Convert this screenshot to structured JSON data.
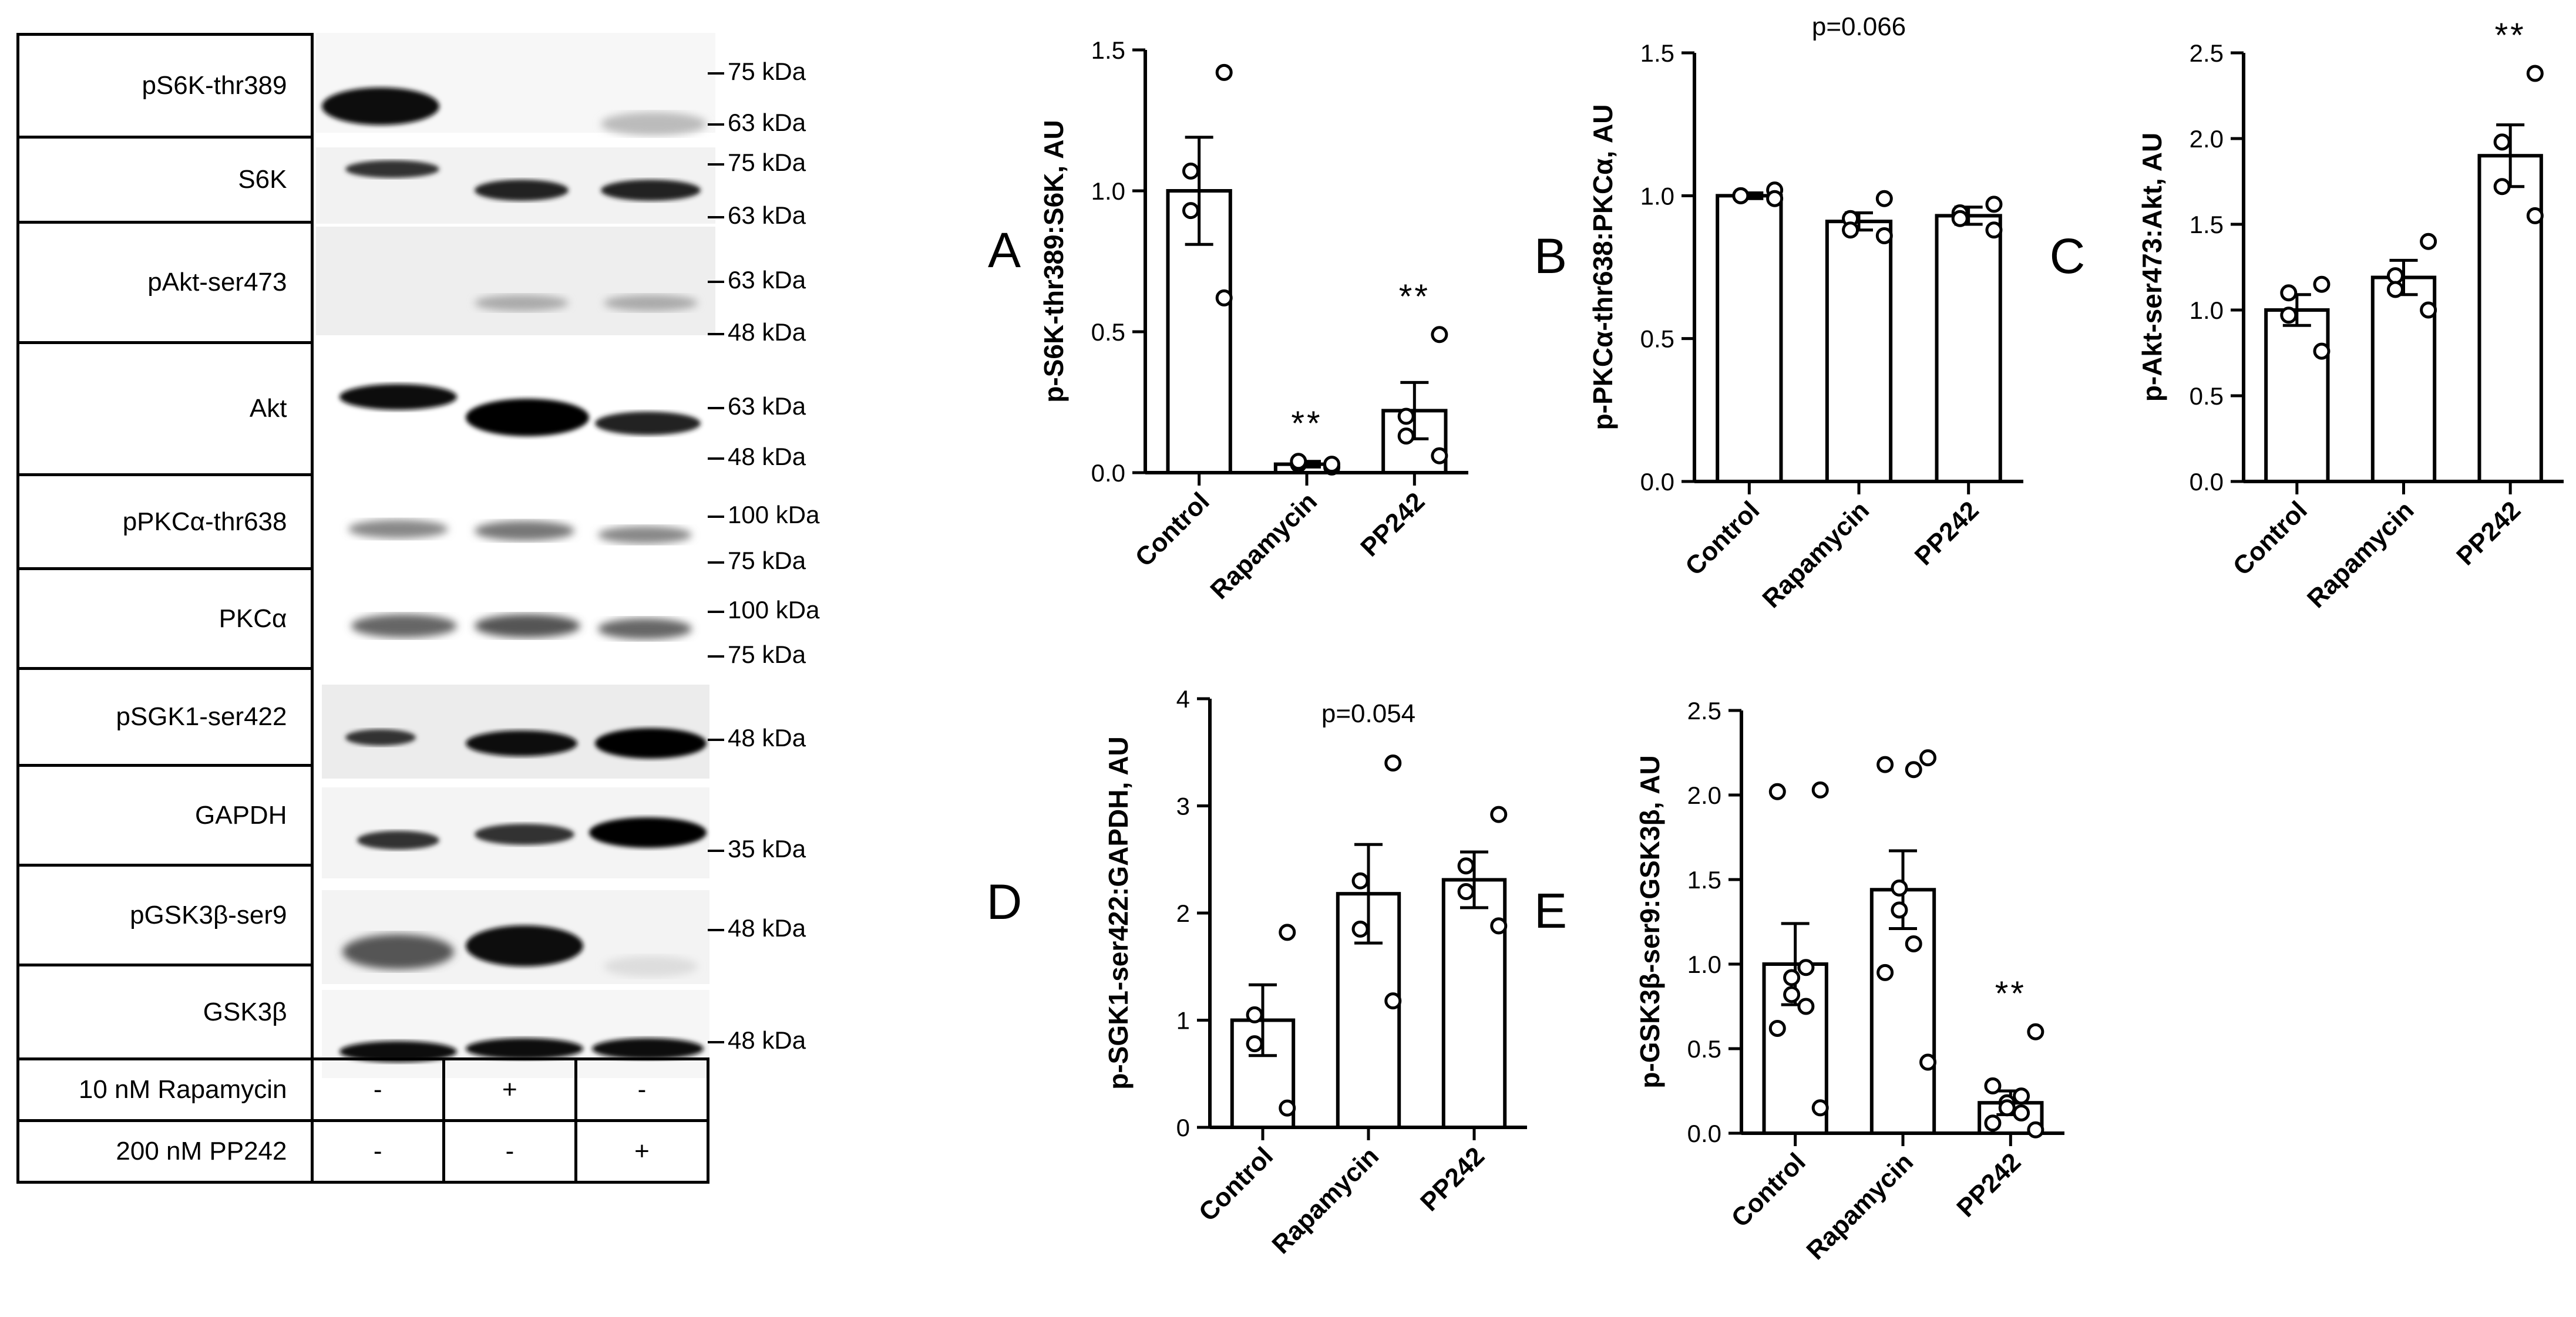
{
  "blot": {
    "rows": [
      {
        "label": "pS6K-thr389",
        "markers": [
          "75 kDa",
          "63 kDa"
        ]
      },
      {
        "label": "S6K",
        "markers": [
          "75 kDa",
          "63 kDa"
        ]
      },
      {
        "label": "pAkt-ser473",
        "markers": [
          "63 kDa",
          "48 kDa"
        ]
      },
      {
        "label": "Akt",
        "markers": [
          "63 kDa",
          "48 kDa"
        ]
      },
      {
        "label": "pPKCα-thr638",
        "markers": [
          "100 kDa",
          "75 kDa"
        ]
      },
      {
        "label": "PKCα",
        "markers": [
          "100 kDa",
          "75 kDa"
        ]
      },
      {
        "label": "pSGK1-ser422",
        "markers": [
          "48 kDa"
        ]
      },
      {
        "label": "GAPDH",
        "markers": [
          "35 kDa"
        ]
      },
      {
        "label": "pGSK3β-ser9",
        "markers": [
          "48 kDa"
        ]
      },
      {
        "label": "GSK3β",
        "markers": [
          "48 kDa"
        ]
      }
    ],
    "treatments": [
      {
        "label": "10 nM Rapamycin",
        "lanes": [
          "-",
          "+",
          "-"
        ]
      },
      {
        "label": "200 nM PP242",
        "lanes": [
          "-",
          "-",
          "+"
        ]
      }
    ]
  },
  "chart_data": [
    {
      "panel": "A",
      "type": "bar",
      "ylabel": "p-S6K-thr389:S6K, AU",
      "categories": [
        "Control",
        "Rapamycin",
        "PP242"
      ],
      "values": [
        1.0,
        0.03,
        0.22
      ],
      "sem": [
        0.19,
        0.01,
        0.1
      ],
      "points": [
        [
          1.42,
          1.07,
          0.93,
          0.62
        ],
        [
          0.02,
          0.03,
          0.04,
          0.03
        ],
        [
          0.49,
          0.2,
          0.13,
          0.06
        ]
      ],
      "ylim": [
        0,
        1.5
      ],
      "yticks": [
        "0.0",
        "0.5",
        "1.0",
        "1.5"
      ],
      "significance": [
        "",
        "**",
        "**"
      ],
      "pvalue": ""
    },
    {
      "panel": "B",
      "type": "bar",
      "ylabel": "p-PKCα-thr638:PKCα, AU",
      "categories": [
        "Control",
        "Rapamycin",
        "PP242"
      ],
      "values": [
        1.0,
        0.91,
        0.93
      ],
      "sem": [
        0.01,
        0.03,
        0.03
      ],
      "points": [
        [
          1.02,
          1.0,
          1.0,
          0.99
        ],
        [
          0.99,
          0.92,
          0.88,
          0.86
        ],
        [
          0.97,
          0.94,
          0.92,
          0.88
        ]
      ],
      "ylim": [
        0,
        1.5
      ],
      "yticks": [
        "0.0",
        "0.5",
        "1.0",
        "1.5"
      ],
      "significance": [
        "",
        "",
        ""
      ],
      "pvalue": "p=0.066"
    },
    {
      "panel": "C",
      "type": "bar",
      "ylabel": "p-Akt-ser473:Akt, AU",
      "categories": [
        "Control",
        "Rapamycin",
        "PP242"
      ],
      "values": [
        1.0,
        1.19,
        1.9
      ],
      "sem": [
        0.09,
        0.1,
        0.18
      ],
      "points": [
        [
          1.15,
          1.1,
          0.97,
          0.76
        ],
        [
          1.4,
          1.2,
          1.12,
          1.0
        ],
        [
          2.38,
          1.98,
          1.72,
          1.55
        ]
      ],
      "ylim": [
        0,
        2.5
      ],
      "yticks": [
        "0.0",
        "0.5",
        "1.0",
        "1.5",
        "2.0",
        "2.5"
      ],
      "significance": [
        "",
        "",
        "**"
      ],
      "pvalue": ""
    },
    {
      "panel": "D",
      "type": "bar",
      "ylabel": "p-SGK1-ser422:GAPDH, AU",
      "categories": [
        "Control",
        "Rapamycin",
        "PP242"
      ],
      "values": [
        1.0,
        2.18,
        2.31
      ],
      "sem": [
        0.33,
        0.46,
        0.26
      ],
      "points": [
        [
          1.82,
          1.05,
          0.78,
          0.18
        ],
        [
          3.4,
          2.3,
          1.85,
          1.18
        ],
        [
          2.92,
          2.44,
          2.2,
          1.88
        ]
      ],
      "ylim": [
        0,
        4
      ],
      "yticks": [
        "0",
        "1",
        "2",
        "3",
        "4"
      ],
      "significance": [
        "",
        "",
        ""
      ],
      "pvalue": "p=0.054"
    },
    {
      "panel": "E",
      "type": "bar",
      "ylabel": "p-GSK3β-ser9:GSK3β, AU",
      "categories": [
        "Control",
        "Rapamycin",
        "PP242"
      ],
      "values": [
        1.0,
        1.44,
        0.18
      ],
      "sem": [
        0.24,
        0.23,
        0.07
      ],
      "points": [
        [
          2.03,
          2.02,
          0.98,
          0.92,
          0.82,
          0.75,
          0.62,
          0.15
        ],
        [
          2.22,
          2.18,
          2.15,
          1.45,
          1.32,
          1.12,
          0.95,
          0.42
        ],
        [
          0.6,
          0.28,
          0.22,
          0.18,
          0.15,
          0.12,
          0.06,
          0.02
        ]
      ],
      "ylim": [
        0,
        2.5
      ],
      "yticks": [
        "0.0",
        "0.5",
        "1.0",
        "1.5",
        "2.0",
        "2.5"
      ],
      "significance": [
        "",
        "",
        "**"
      ],
      "pvalue": ""
    }
  ]
}
